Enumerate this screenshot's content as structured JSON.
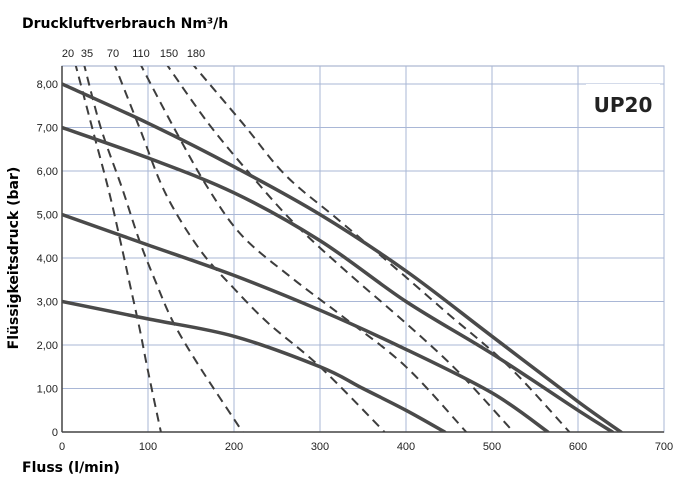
{
  "chart_data": {
    "type": "line",
    "title": "Druckluftverbrauch Nm³/h",
    "model_label": "UP20",
    "xlabel": "Fluss (l/min)",
    "ylabel": "Flüssigkeitsdruck (bar)",
    "xlim": [
      0,
      700
    ],
    "ylim": [
      0,
      8.5
    ],
    "x_ticks": [
      0,
      100,
      200,
      300,
      400,
      500,
      600,
      700
    ],
    "y_ticks": [
      0,
      1,
      2,
      3,
      4,
      5,
      6,
      7,
      8
    ],
    "x_tick_labels": [
      "0",
      "100",
      "200",
      "300",
      "400",
      "500",
      "600",
      "700"
    ],
    "y_tick_labels": [
      "0",
      "1,00",
      "2,00",
      "3,00",
      "4,00",
      "5,00",
      "6,00",
      "7,00",
      "8,00"
    ],
    "grid": true,
    "pressure_curves": [
      {
        "x": [
          0,
          100,
          200,
          300,
          400,
          500,
          600,
          650
        ],
        "y": [
          8.0,
          7.1,
          6.1,
          5.0,
          3.7,
          2.2,
          0.7,
          0.0
        ]
      },
      {
        "x": [
          0,
          100,
          200,
          300,
          400,
          500,
          600,
          640
        ],
        "y": [
          7.0,
          6.3,
          5.5,
          4.4,
          3.0,
          1.8,
          0.5,
          0.0
        ]
      },
      {
        "x": [
          0,
          100,
          200,
          300,
          400,
          500,
          565
        ],
        "y": [
          5.0,
          4.3,
          3.6,
          2.8,
          1.9,
          0.9,
          0.0
        ]
      },
      {
        "x": [
          0,
          100,
          200,
          300,
          350,
          400,
          445
        ],
        "y": [
          3.0,
          2.6,
          2.2,
          1.5,
          1.0,
          0.5,
          0.0
        ]
      }
    ],
    "air_consumption_curves": [
      {
        "label": "20",
        "x": [
          15,
          35,
          55,
          70,
          80,
          90,
          100,
          115
        ],
        "y": [
          8.5,
          7.0,
          5.5,
          4.2,
          3.3,
          2.4,
          1.4,
          0.0
        ]
      },
      {
        "label": "35",
        "x": [
          25,
          45,
          70,
          90,
          110,
          130,
          160,
          210
        ],
        "y": [
          8.5,
          7.0,
          5.6,
          4.4,
          3.4,
          2.5,
          1.5,
          0.0
        ]
      },
      {
        "label": "70",
        "x": [
          60,
          90,
          120,
          160,
          200,
          240,
          300,
          375
        ],
        "y": [
          8.5,
          7.0,
          5.5,
          4.2,
          3.3,
          2.5,
          1.5,
          0.0
        ]
      },
      {
        "label": "110",
        "x": [
          90,
          130,
          170,
          210,
          270,
          330,
          400,
          470
        ],
        "y": [
          8.5,
          7.0,
          5.6,
          4.5,
          3.5,
          2.6,
          1.5,
          0.0
        ]
      },
      {
        "label": "150",
        "x": [
          120,
          170,
          220,
          270,
          330,
          400,
          460,
          525
        ],
        "y": [
          8.5,
          7.1,
          5.9,
          4.8,
          3.7,
          2.5,
          1.4,
          0.0
        ]
      },
      {
        "label": "180",
        "x": [
          150,
          210,
          260,
          320,
          380,
          450,
          520,
          590
        ],
        "y": [
          8.5,
          7.1,
          5.9,
          4.9,
          3.9,
          2.7,
          1.5,
          0.0
        ]
      }
    ]
  }
}
